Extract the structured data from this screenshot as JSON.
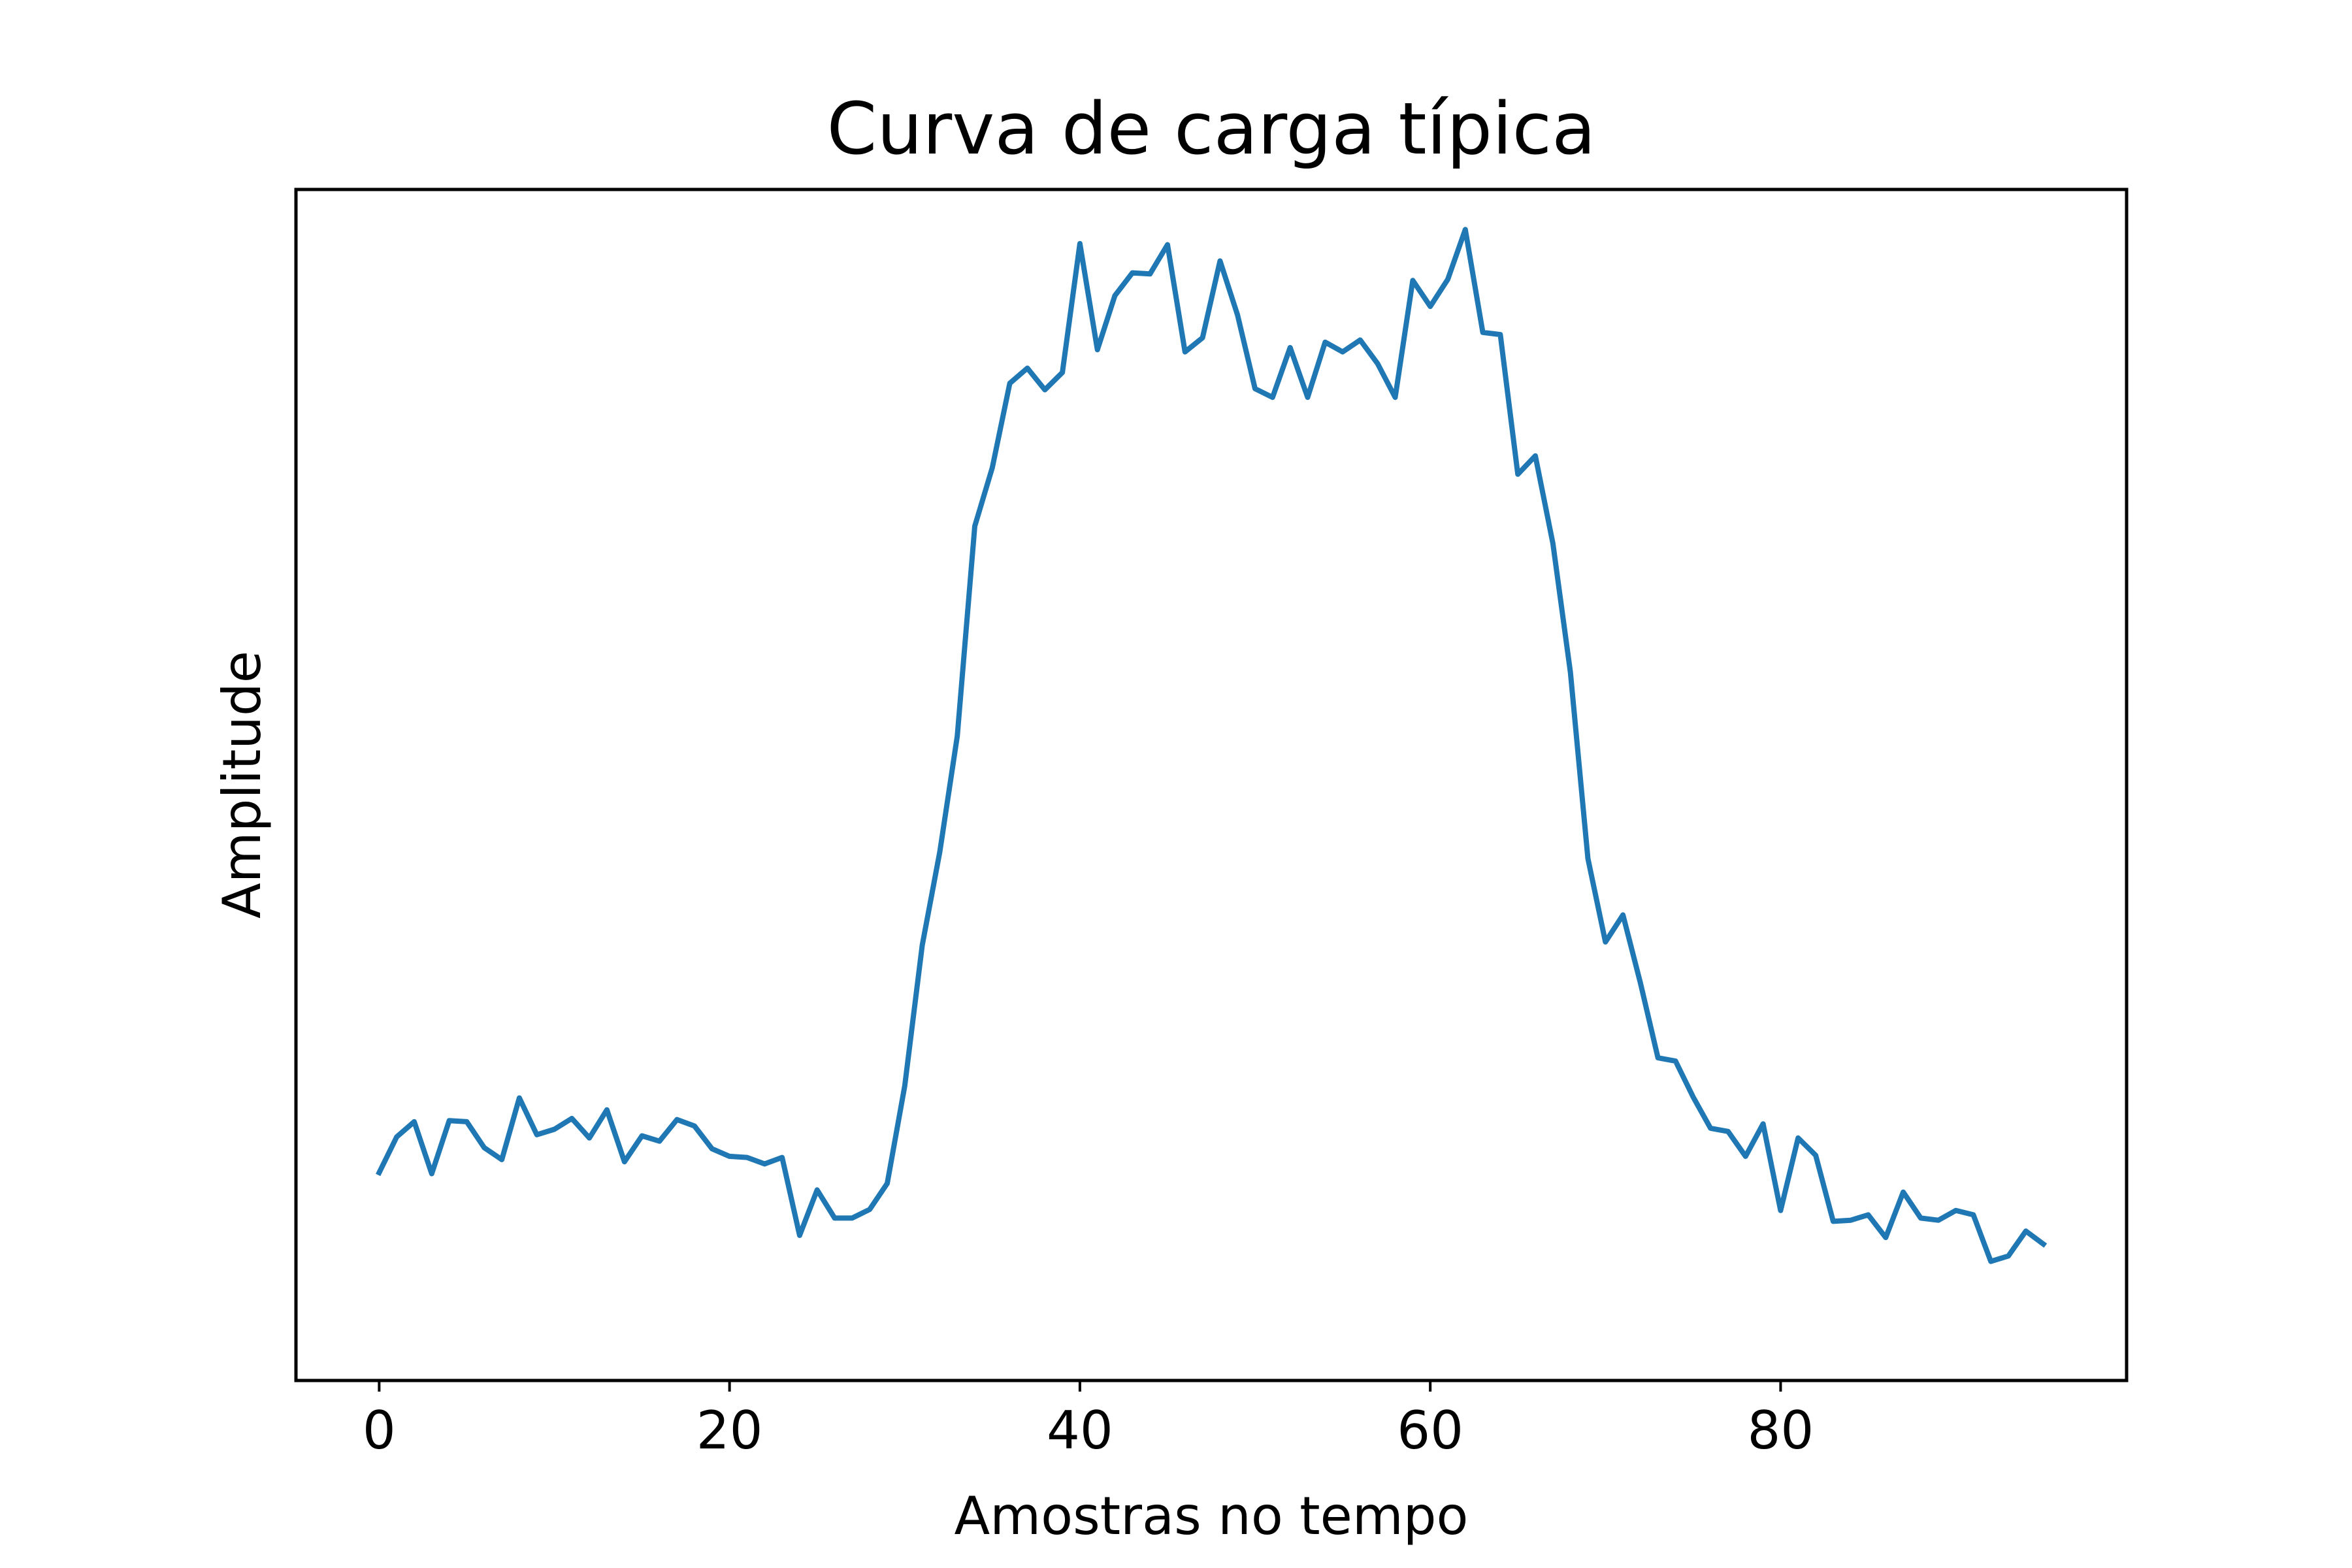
{
  "chart_data": {
    "type": "line",
    "title": "Curva de carga típica",
    "xlabel": "Amostras no tempo",
    "ylabel": "Amplitude",
    "xlim": [
      -4.75,
      99.75
    ],
    "ylim": [
      -0.05,
      1.05
    ],
    "x_ticks": [
      0,
      20,
      40,
      60,
      80
    ],
    "y_ticks": [],
    "grid": false,
    "legend": "none",
    "series": [
      {
        "color": "#1f77b4",
        "x": [
          0,
          1,
          2,
          3,
          4,
          5,
          6,
          7,
          8,
          9,
          10,
          11,
          12,
          13,
          14,
          15,
          16,
          17,
          18,
          19,
          20,
          21,
          22,
          23,
          24,
          25,
          26,
          27,
          28,
          29,
          30,
          31,
          32,
          33,
          34,
          35,
          36,
          37,
          38,
          39,
          40,
          41,
          42,
          43,
          44,
          45,
          46,
          47,
          48,
          49,
          50,
          51,
          52,
          53,
          54,
          55,
          56,
          57,
          58,
          59,
          60,
          61,
          62,
          63,
          64,
          65,
          66,
          67,
          68,
          69,
          70,
          71,
          72,
          73,
          74,
          75,
          76,
          77,
          78,
          79,
          80,
          81,
          82,
          83,
          84,
          85,
          86,
          87,
          88,
          89,
          90,
          91,
          92,
          93,
          94,
          95
        ],
        "values": [
          0.142,
          0.175,
          0.189,
          0.141,
          0.19,
          0.189,
          0.165,
          0.154,
          0.211,
          0.177,
          0.182,
          0.192,
          0.174,
          0.2,
          0.152,
          0.176,
          0.171,
          0.191,
          0.185,
          0.164,
          0.157,
          0.156,
          0.15,
          0.156,
          0.084,
          0.126,
          0.1,
          0.1,
          0.108,
          0.132,
          0.222,
          0.352,
          0.438,
          0.545,
          0.739,
          0.793,
          0.871,
          0.885,
          0.865,
          0.881,
          1.0,
          0.902,
          0.952,
          0.973,
          0.972,
          0.999,
          0.9,
          0.913,
          0.984,
          0.934,
          0.866,
          0.858,
          0.904,
          0.858,
          0.909,
          0.9,
          0.911,
          0.889,
          0.858,
          0.966,
          0.942,
          0.967,
          1.013,
          0.918,
          0.916,
          0.787,
          0.804,
          0.723,
          0.604,
          0.432,
          0.355,
          0.38,
          0.317,
          0.248,
          0.245,
          0.212,
          0.183,
          0.18,
          0.157,
          0.187,
          0.107,
          0.174,
          0.158,
          0.097,
          0.098,
          0.103,
          0.082,
          0.124,
          0.1,
          0.098,
          0.107,
          0.103,
          0.06,
          0.065,
          0.088,
          0.076
        ]
      }
    ]
  }
}
